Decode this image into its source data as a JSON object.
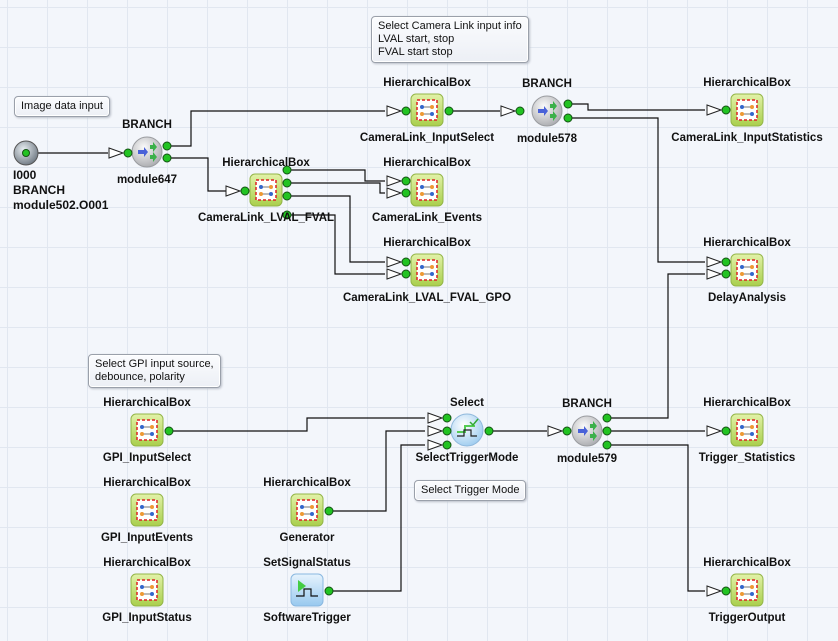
{
  "comments": [
    {
      "id": "c1",
      "lines": [
        "Image data input"
      ]
    },
    {
      "id": "c2",
      "lines": [
        "Select Camera Link input info",
        "LVAL start, stop",
        "FVAL start stop"
      ]
    },
    {
      "id": "c3",
      "lines": [
        "Select GPI input source,",
        "debounce, polarity"
      ]
    },
    {
      "id": "c4",
      "lines": [
        "Select Trigger Mode"
      ]
    }
  ],
  "source": {
    "lines": [
      "I000",
      "BRANCH",
      "module502.O001"
    ],
    "icon": "source-port-icon"
  },
  "nodes": [
    {
      "id": "module647",
      "type": "BRANCH",
      "name": "module647",
      "icon": "branch-icon"
    },
    {
      "id": "lvalfval",
      "type": "HierarchicalBox",
      "name": "CameraLink_LVAL_FVAL",
      "icon": "hierarchical-box-icon"
    },
    {
      "id": "inputselect",
      "type": "HierarchicalBox",
      "name": "CameraLink_InputSelect",
      "icon": "hierarchical-box-icon"
    },
    {
      "id": "events",
      "type": "HierarchicalBox",
      "name": "CameraLink_Events",
      "icon": "hierarchical-box-icon"
    },
    {
      "id": "gpo",
      "type": "HierarchicalBox",
      "name": "CameraLink_LVAL_FVAL_GPO",
      "icon": "hierarchical-box-icon"
    },
    {
      "id": "module578",
      "type": "BRANCH",
      "name": "module578",
      "icon": "branch-icon"
    },
    {
      "id": "instats",
      "type": "HierarchicalBox",
      "name": "CameraLink_InputStatistics",
      "icon": "hierarchical-box-icon"
    },
    {
      "id": "delay",
      "type": "HierarchicalBox",
      "name": "DelayAnalysis",
      "icon": "hierarchical-box-icon"
    },
    {
      "id": "gpisel",
      "type": "HierarchicalBox",
      "name": "GPI_InputSelect",
      "icon": "hierarchical-box-icon"
    },
    {
      "id": "gpiev",
      "type": "HierarchicalBox",
      "name": "GPI_InputEvents",
      "icon": "hierarchical-box-icon"
    },
    {
      "id": "gpist",
      "type": "HierarchicalBox",
      "name": "GPI_InputStatus",
      "icon": "hierarchical-box-icon"
    },
    {
      "id": "generator",
      "type": "HierarchicalBox",
      "name": "Generator",
      "icon": "hierarchical-box-icon"
    },
    {
      "id": "swtrig",
      "type": "SetSignalStatus",
      "name": "SoftwareTrigger",
      "icon": "signal-status-icon"
    },
    {
      "id": "seltrig",
      "type": "Select",
      "name": "SelectTriggerMode",
      "icon": "select-icon"
    },
    {
      "id": "module579",
      "type": "BRANCH",
      "name": "module579",
      "icon": "branch-icon"
    },
    {
      "id": "trigstats",
      "type": "HierarchicalBox",
      "name": "Trigger_Statistics",
      "icon": "hierarchical-box-icon"
    },
    {
      "id": "trigout",
      "type": "HierarchicalBox",
      "name": "TriggerOutput",
      "icon": "hierarchical-box-icon"
    }
  ],
  "colors": {
    "port": "#22c322",
    "hb_fill": "#c4e070",
    "wire": "#111111"
  }
}
